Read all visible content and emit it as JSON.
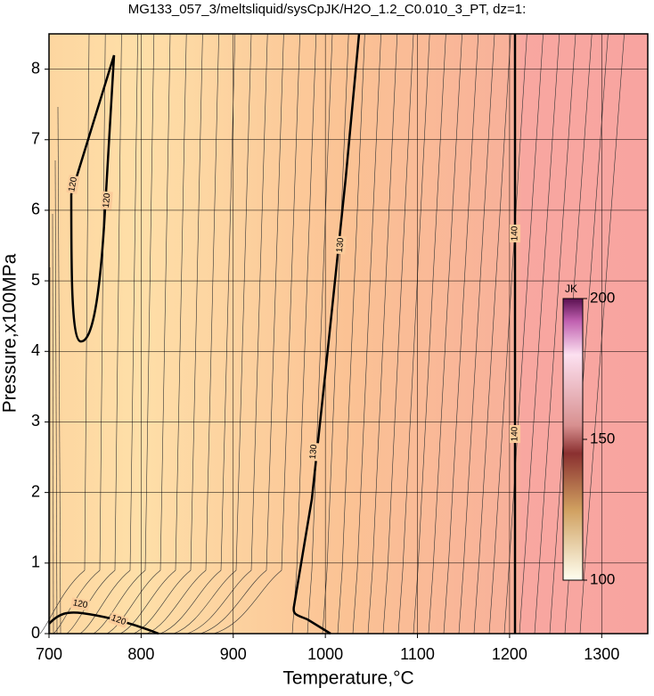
{
  "chart_data": {
    "type": "contour",
    "title": "MG133_057_3/meltsliquid/sysCpJK/H2O_1.2_C0.010_3_PT, dz=1:",
    "x_label": "Temperature,°C",
    "y_label": "Pressure,x100MPa",
    "xlim": [
      700,
      1350
    ],
    "ylim": [
      0,
      8.5
    ],
    "xticks": [
      700,
      800,
      900,
      1000,
      1100,
      1200,
      1300
    ],
    "yticks": [
      0,
      1,
      2,
      3,
      4,
      5,
      6,
      7,
      8
    ],
    "grid": true,
    "contour_levels": [
      120,
      130,
      140
    ],
    "colorbar": {
      "label": "JK",
      "lim": [
        100,
        200
      ],
      "ticks": [
        100,
        150,
        200
      ]
    }
  }
}
